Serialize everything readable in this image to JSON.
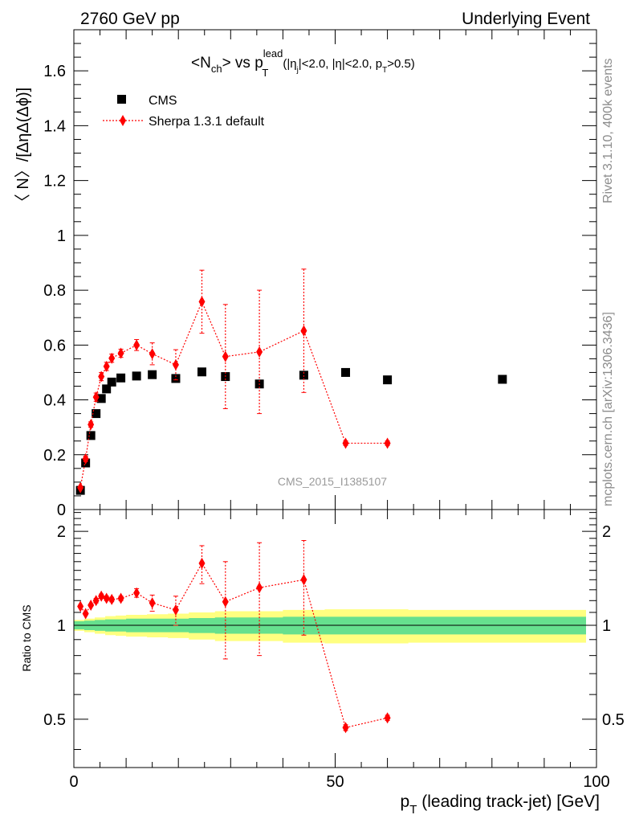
{
  "header": {
    "left": "2760 GeV pp",
    "right": "Underlying Event"
  },
  "side_labels": {
    "rivet": "Rivet 3.1.10,  400k events",
    "mcplots": "mcplots.cern.ch [arXiv:1306.3436]"
  },
  "watermark": "CMS_2015_I1385107",
  "title": {
    "main": "<N",
    "main_sub": "ch",
    "main_mid": "> vs p",
    "main_sup": "lead",
    "main_sub2": "T",
    "cuts_a": "(|η",
    "cuts_a_sub": "j",
    "cuts_b": "|<2.0, |η|<2.0, p",
    "cuts_b_sub": "T",
    "cuts_c": ">0.5)"
  },
  "legend": {
    "placement": "top-left",
    "data_label": "CMS",
    "mc_label": "Sherpa 1.3.1 default"
  },
  "axes": {
    "ylabel_top": "〈 N〉/[ΔηΔ(Δϕ)]",
    "ylabel_ratio": "Ratio to CMS",
    "xlabel_p": "p",
    "xlabel_sub": "T",
    "xlabel_rest": " (leading track-jet) [GeV]"
  },
  "colors": {
    "data": "#000000",
    "mc": "#ff0000",
    "band_inner": "#66e08e",
    "band_outer": "#ffff80"
  },
  "chart_data": [
    {
      "type": "scatter",
      "panel": "main",
      "xlim": [
        0,
        100
      ],
      "ylim": [
        0,
        1.75
      ],
      "yticks": [
        "0",
        "0.2",
        "0.4",
        "0.6",
        "0.8",
        "1",
        "1.2",
        "1.4",
        "1.6"
      ],
      "ytick_values": [
        0,
        0.2,
        0.4,
        0.6,
        0.8,
        1.0,
        1.2,
        1.4,
        1.6
      ],
      "series": [
        {
          "name": "CMS",
          "marker": "square",
          "x": [
            1.25,
            2.25,
            3.25,
            4.25,
            5.25,
            6.25,
            7.25,
            9,
            12,
            15,
            19.5,
            24.5,
            29,
            35.5,
            44,
            52,
            60,
            82
          ],
          "y": [
            0.07,
            0.17,
            0.27,
            0.35,
            0.405,
            0.44,
            0.465,
            0.48,
            0.487,
            0.492,
            0.478,
            0.502,
            0.485,
            0.458,
            0.49,
            0.5,
            0.473,
            0.475
          ]
        },
        {
          "name": "Sherpa 1.3.1 default",
          "marker": "diamond",
          "x": [
            1.25,
            2.25,
            3.25,
            4.25,
            5.25,
            6.25,
            7.25,
            9,
            12,
            15,
            19.5,
            24.5,
            29,
            35.5,
            44,
            52,
            60
          ],
          "y": [
            0.08,
            0.185,
            0.31,
            0.41,
            0.485,
            0.522,
            0.552,
            0.57,
            0.6,
            0.568,
            0.528,
            0.758,
            0.558,
            0.575,
            0.652,
            0.242,
            0.242
          ],
          "yerr": [
            0.005,
            0.01,
            0.01,
            0.015,
            0.015,
            0.015,
            0.015,
            0.015,
            0.02,
            0.04,
            0.055,
            0.115,
            0.19,
            0.225,
            0.225,
            0.008,
            0.008
          ]
        }
      ]
    },
    {
      "type": "scatter",
      "panel": "ratio",
      "xlim": [
        0,
        100
      ],
      "ylim": [
        0.35,
        2.35
      ],
      "yticks": [
        "0.5",
        "1",
        "2"
      ],
      "ytick_values": [
        0.5,
        1.0,
        2.0
      ],
      "xticks": [
        "0",
        "50",
        "100"
      ],
      "xtick_values": [
        0,
        50,
        100
      ],
      "series": [
        {
          "name": "Sherpa 1.3.1 default",
          "x": [
            1.25,
            2.25,
            3.25,
            4.25,
            5.25,
            6.25,
            7.25,
            9,
            12,
            15,
            19.5,
            24.5,
            29,
            35.5,
            44,
            52,
            60
          ],
          "y": [
            1.15,
            1.09,
            1.16,
            1.2,
            1.24,
            1.22,
            1.21,
            1.22,
            1.27,
            1.18,
            1.12,
            1.58,
            1.19,
            1.32,
            1.4,
            0.47,
            0.505
          ],
          "yerr": [
            0.01,
            0.01,
            0.01,
            0.02,
            0.02,
            0.02,
            0.02,
            0.02,
            0.04,
            0.07,
            0.12,
            0.22,
            0.41,
            0.52,
            0.47,
            0.01,
            0.01
          ]
        }
      ],
      "band": {
        "x": [
          0,
          2,
          4,
          6,
          8,
          10,
          14,
          18,
          22,
          27,
          32,
          40,
          48,
          56,
          64,
          72,
          80,
          88,
          96,
          100
        ],
        "inner": [
          0.03,
          0.035,
          0.04,
          0.045,
          0.045,
          0.05,
          0.05,
          0.05,
          0.055,
          0.06,
          0.06,
          0.065,
          0.065,
          0.065,
          0.065,
          0.065,
          0.065,
          0.065,
          0.065,
          0.065
        ],
        "outer": [
          0.04,
          0.05,
          0.06,
          0.07,
          0.075,
          0.08,
          0.085,
          0.09,
          0.1,
          0.11,
          0.11,
          0.12,
          0.125,
          0.125,
          0.12,
          0.12,
          0.12,
          0.12,
          0.12,
          0.12
        ]
      }
    }
  ]
}
